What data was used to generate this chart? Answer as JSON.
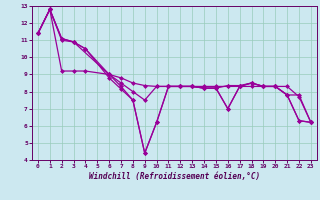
{
  "xlabel": "Windchill (Refroidissement éolien,°C)",
  "background_color": "#cce8f0",
  "grid_color": "#99ccbb",
  "line_color": "#990099",
  "xlim": [
    -0.5,
    23.5
  ],
  "ylim": [
    4,
    13
  ],
  "yticks": [
    4,
    5,
    6,
    7,
    8,
    9,
    10,
    11,
    12,
    13
  ],
  "xticks": [
    0,
    1,
    2,
    3,
    4,
    5,
    6,
    7,
    8,
    9,
    10,
    11,
    12,
    13,
    14,
    15,
    16,
    17,
    18,
    19,
    20,
    21,
    22,
    23
  ],
  "series1_x": [
    0,
    1,
    2,
    3,
    4,
    6,
    7,
    8,
    9,
    10,
    11,
    12,
    13,
    14,
    15,
    16,
    17,
    18,
    19,
    20,
    21,
    22,
    23
  ],
  "series1_y": [
    11.4,
    12.8,
    11.0,
    10.9,
    10.5,
    8.8,
    8.15,
    7.5,
    4.4,
    6.2,
    8.3,
    8.3,
    8.3,
    8.2,
    8.2,
    7.0,
    8.3,
    8.5,
    8.3,
    8.3,
    7.8,
    6.3,
    6.2
  ],
  "series2_x": [
    0,
    1,
    2,
    3,
    4,
    6,
    7,
    8,
    9,
    10,
    11,
    12,
    13,
    14,
    15,
    16,
    17,
    18,
    19,
    20,
    21,
    22,
    23
  ],
  "series2_y": [
    11.4,
    12.8,
    11.1,
    10.9,
    10.5,
    9.0,
    8.5,
    8.0,
    7.5,
    8.3,
    8.3,
    8.3,
    8.3,
    8.2,
    8.2,
    8.35,
    8.35,
    8.5,
    8.3,
    8.3,
    7.8,
    7.8,
    6.2
  ],
  "series3_x": [
    0,
    1,
    2,
    3,
    4,
    6,
    7,
    8,
    9,
    10,
    11,
    12,
    13,
    14,
    15,
    16,
    17,
    18,
    19,
    20,
    21,
    22,
    23
  ],
  "series3_y": [
    11.4,
    12.8,
    9.2,
    9.2,
    9.2,
    9.0,
    8.8,
    8.5,
    8.35,
    8.3,
    8.3,
    8.3,
    8.3,
    8.3,
    8.3,
    8.3,
    8.3,
    8.3,
    8.3,
    8.3,
    8.3,
    7.7,
    6.2
  ],
  "series4_x": [
    0,
    1,
    2,
    3,
    6,
    7,
    8,
    9,
    10,
    11,
    12,
    13,
    14,
    15,
    16,
    17,
    18,
    19,
    20,
    21,
    22,
    23
  ],
  "series4_y": [
    11.4,
    12.8,
    11.1,
    10.9,
    9.0,
    8.3,
    7.5,
    4.4,
    6.2,
    8.3,
    8.3,
    8.3,
    8.2,
    8.2,
    7.0,
    8.3,
    8.5,
    8.3,
    8.3,
    7.8,
    6.3,
    6.2
  ]
}
